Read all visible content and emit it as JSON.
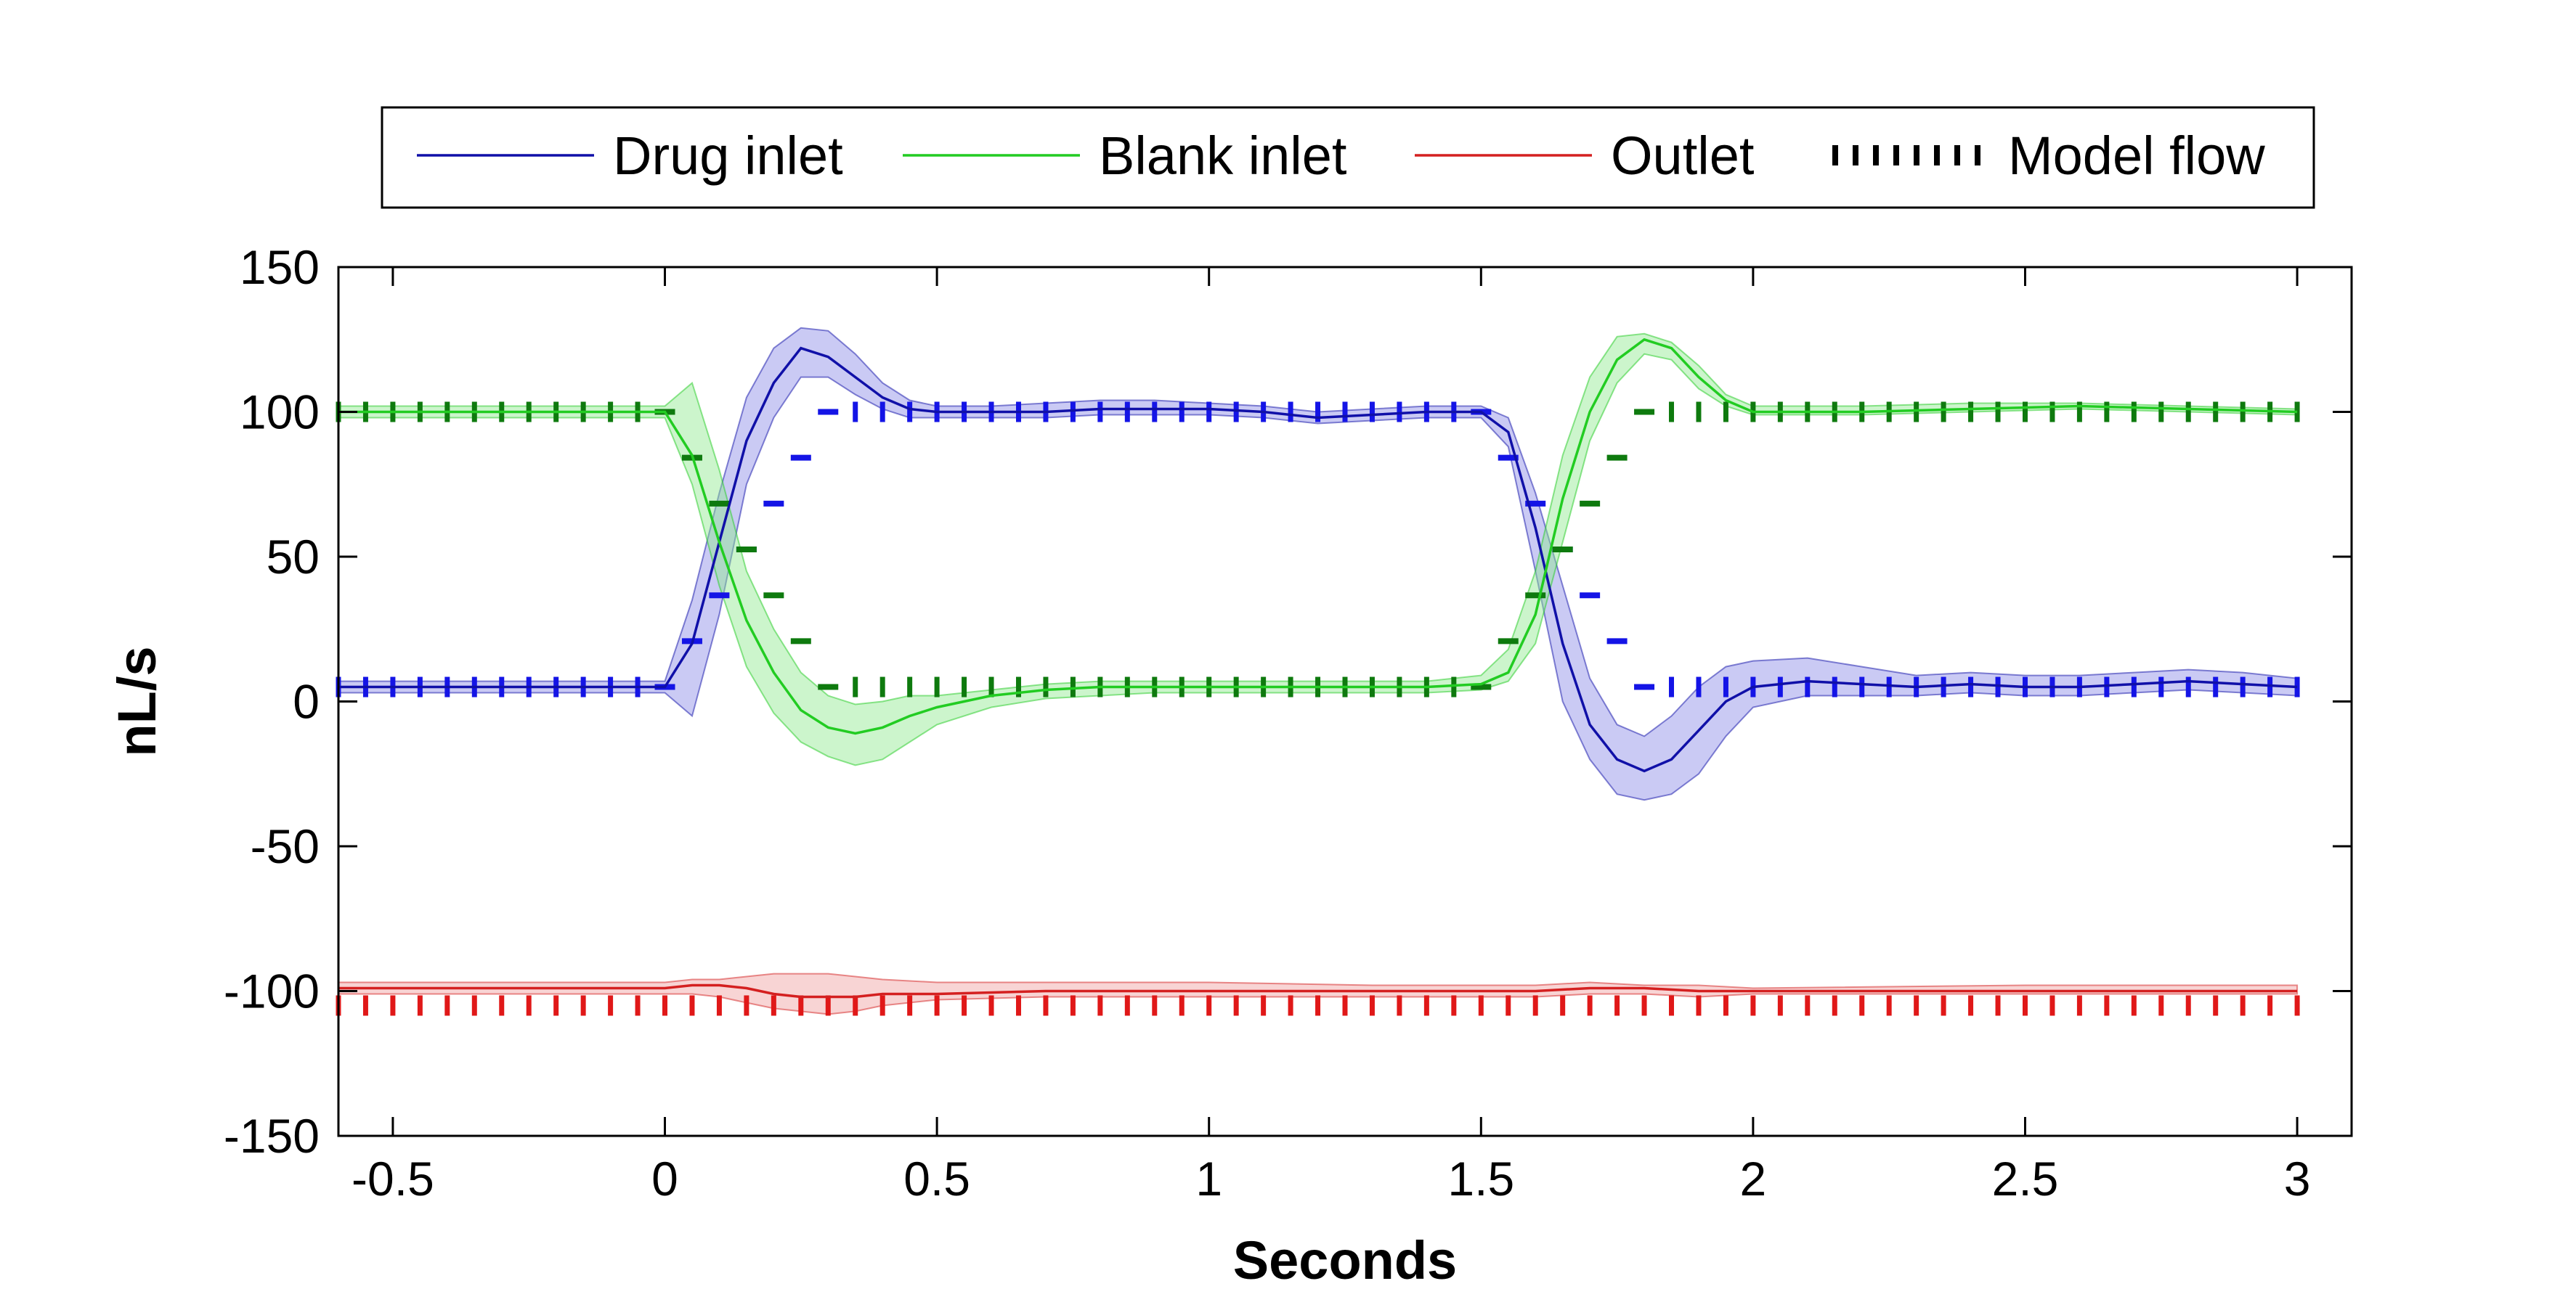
{
  "chart_data": {
    "type": "line",
    "xlabel": "Seconds",
    "ylabel": "nL/s",
    "xlim": [
      -0.6,
      3.1
    ],
    "ylim": [
      -150,
      150
    ],
    "xticks": [
      -0.5,
      0,
      0.5,
      1,
      1.5,
      2,
      2.5,
      3
    ],
    "xtick_labels": [
      "-0.5",
      "0",
      "0.5",
      "1",
      "1.5",
      "2",
      "2.5",
      "3"
    ],
    "yticks": [
      150,
      100,
      50,
      0,
      -50,
      -100,
      -150
    ],
    "ytick_labels": [
      "150",
      "100",
      "50",
      "0",
      "-50",
      "-100",
      "-150"
    ],
    "grid": false,
    "legend": {
      "placement": "top",
      "entries": [
        {
          "label": "Drug inlet",
          "style": "solid",
          "color": "#1010a8"
        },
        {
          "label": "Blank inlet",
          "style": "solid",
          "color": "#22cc22"
        },
        {
          "label": "Outlet",
          "style": "solid",
          "color": "#d42020"
        },
        {
          "label": "Model flow",
          "style": "dotted",
          "color": "#000000"
        }
      ]
    },
    "series": [
      {
        "key": "drug",
        "color": "#1010a8",
        "band_color": "#8a8ae6",
        "x": [
          -0.6,
          0,
          0.05,
          0.1,
          0.15,
          0.2,
          0.25,
          0.3,
          0.35,
          0.4,
          0.45,
          0.5,
          0.6,
          0.7,
          0.8,
          0.9,
          1.0,
          1.1,
          1.2,
          1.3,
          1.4,
          1.5,
          1.55,
          1.6,
          1.65,
          1.7,
          1.75,
          1.8,
          1.85,
          1.9,
          1.95,
          2.0,
          2.1,
          2.2,
          2.3,
          2.4,
          2.5,
          2.6,
          2.7,
          2.8,
          2.9,
          3.0
        ],
        "y": [
          5,
          5,
          20,
          55,
          90,
          110,
          122,
          119,
          112,
          105,
          101,
          100,
          100,
          100,
          101,
          101,
          101,
          100,
          98,
          99,
          100,
          100,
          93,
          60,
          20,
          -8,
          -20,
          -24,
          -20,
          -10,
          0,
          5,
          7,
          6,
          5,
          6,
          5,
          5,
          6,
          7,
          6,
          5
        ],
        "lower": [
          3,
          3,
          -5,
          30,
          75,
          98,
          112,
          112,
          106,
          101,
          98,
          98,
          98,
          98,
          99,
          99,
          99,
          98,
          96,
          97,
          98,
          98,
          88,
          45,
          0,
          -20,
          -32,
          -34,
          -32,
          -25,
          -12,
          -2,
          2,
          2,
          2,
          3,
          2,
          2,
          3,
          4,
          3,
          2
        ],
        "upper": [
          7,
          7,
          35,
          72,
          105,
          122,
          129,
          128,
          120,
          110,
          104,
          102,
          102,
          103,
          104,
          104,
          103,
          102,
          100,
          101,
          102,
          102,
          98,
          72,
          40,
          8,
          -8,
          -12,
          -5,
          5,
          12,
          14,
          15,
          12,
          9,
          10,
          9,
          9,
          10,
          11,
          10,
          8
        ]
      },
      {
        "key": "blank",
        "color": "#22cc22",
        "band_color": "#8ee88e",
        "x": [
          -0.6,
          0,
          0.05,
          0.1,
          0.15,
          0.2,
          0.25,
          0.3,
          0.35,
          0.4,
          0.45,
          0.5,
          0.6,
          0.7,
          0.8,
          0.9,
          1.0,
          1.1,
          1.2,
          1.3,
          1.4,
          1.5,
          1.55,
          1.6,
          1.65,
          1.7,
          1.75,
          1.8,
          1.85,
          1.9,
          1.95,
          2.0,
          2.2,
          2.4,
          2.6,
          2.8,
          3.0
        ],
        "y": [
          100,
          100,
          85,
          55,
          28,
          10,
          -3,
          -9,
          -11,
          -9,
          -5,
          -2,
          2,
          4,
          5,
          5,
          5,
          5,
          5,
          5,
          5,
          6,
          10,
          30,
          70,
          100,
          118,
          125,
          122,
          112,
          104,
          100,
          100,
          101,
          102,
          101,
          100
        ],
        "lower": [
          98,
          98,
          75,
          40,
          12,
          -4,
          -14,
          -19,
          -22,
          -20,
          -14,
          -8,
          -2,
          1,
          2,
          3,
          3,
          3,
          3,
          3,
          3,
          4,
          7,
          20,
          55,
          90,
          110,
          120,
          118,
          108,
          102,
          99,
          99,
          100,
          101,
          100,
          99
        ],
        "upper": [
          102,
          102,
          110,
          80,
          45,
          25,
          10,
          2,
          -1,
          0,
          2,
          2,
          4,
          6,
          7,
          7,
          7,
          7,
          7,
          7,
          7,
          9,
          18,
          45,
          85,
          112,
          126,
          127,
          124,
          116,
          106,
          102,
          102,
          103,
          103,
          102,
          101
        ]
      },
      {
        "key": "outlet",
        "color": "#d42020",
        "band_color": "#f0a0a0",
        "x": [
          -0.6,
          0,
          0.05,
          0.1,
          0.15,
          0.2,
          0.25,
          0.3,
          0.35,
          0.4,
          0.5,
          0.7,
          1.0,
          1.3,
          1.5,
          1.6,
          1.7,
          1.8,
          1.9,
          2.0,
          2.5,
          3.0
        ],
        "y": [
          -99,
          -99,
          -98,
          -98,
          -99,
          -101,
          -102,
          -102,
          -102,
          -101,
          -101,
          -100,
          -100,
          -100,
          -100,
          -100,
          -99,
          -99,
          -100,
          -100,
          -100,
          -100
        ],
        "lower": [
          -101,
          -101,
          -101,
          -102,
          -104,
          -106,
          -107,
          -108,
          -107,
          -105,
          -103,
          -102,
          -102,
          -102,
          -102,
          -102,
          -101,
          -101,
          -102,
          -101,
          -101,
          -101
        ],
        "upper": [
          -97,
          -97,
          -96,
          -96,
          -95,
          -94,
          -94,
          -94,
          -95,
          -96,
          -97,
          -97,
          -97,
          -98,
          -98,
          -98,
          -97,
          -98,
          -98,
          -99,
          -98,
          -98
        ]
      }
    ],
    "model_flow": [
      {
        "key": "drug-model",
        "color": "#1414e6",
        "x": [
          -0.6,
          0,
          0.3,
          1.5,
          1.8,
          3.0
        ],
        "y": [
          5,
          5,
          100,
          100,
          5,
          5
        ]
      },
      {
        "key": "blank-model",
        "color": "#0e7a0e",
        "x": [
          -0.6,
          0,
          0.3,
          1.5,
          1.8,
          3.0
        ],
        "y": [
          100,
          100,
          5,
          5,
          100,
          100
        ]
      },
      {
        "key": "outlet-model",
        "color": "#e01818",
        "x": [
          -0.6,
          3.0
        ],
        "y": [
          -105,
          -105
        ]
      }
    ]
  }
}
